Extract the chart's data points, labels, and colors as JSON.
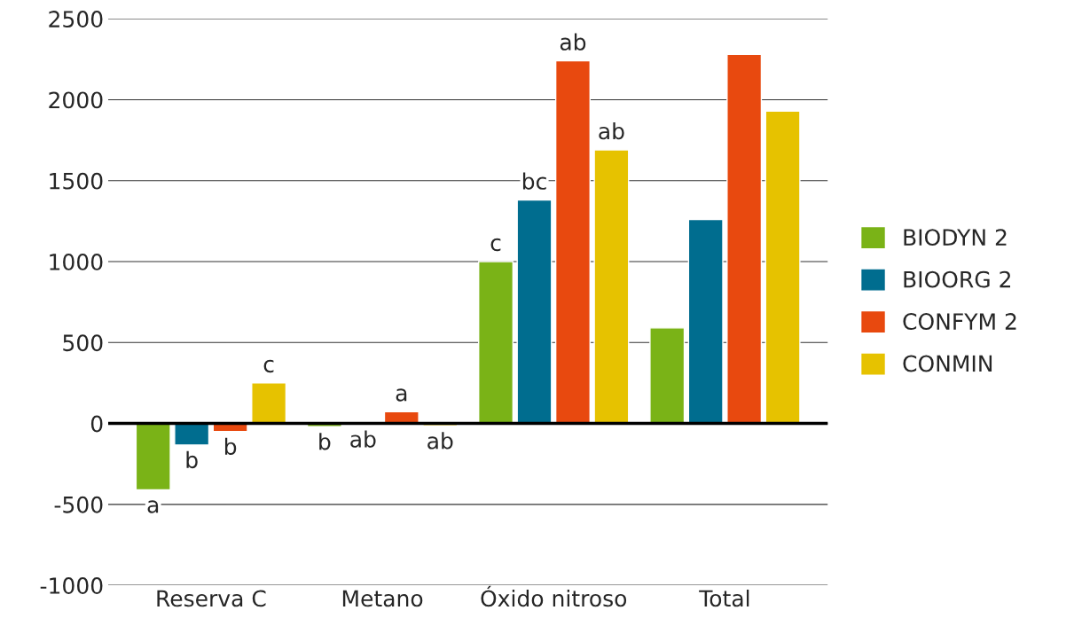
{
  "chart_data": {
    "type": "bar",
    "categories": [
      "Reserva C",
      "Metano",
      "Óxido nitroso",
      "Total"
    ],
    "series": [
      {
        "name": "BIODYN 2",
        "color": "#7ab317",
        "values": [
          -410,
          -20,
          1000,
          590
        ],
        "value_labels": [
          "a",
          "b",
          "c",
          null
        ]
      },
      {
        "name": "BIOORG 2",
        "color": "#006d8f",
        "values": [
          -133,
          -5,
          1380,
          1260
        ],
        "value_labels": [
          "b",
          "ab",
          "bc",
          null
        ]
      },
      {
        "name": "CONFYM 2",
        "color": "#e8490f",
        "values": [
          -50,
          72,
          2240,
          2280
        ],
        "value_labels": [
          "b",
          "a",
          "ab",
          null
        ]
      },
      {
        "name": "CONMIN",
        "color": "#e6c200",
        "values": [
          250,
          -15,
          1690,
          1930
        ],
        "value_labels": [
          "c",
          "ab",
          "ab",
          null
        ]
      }
    ],
    "ylim": [
      -1000,
      2500
    ],
    "yticks": [
      -1000,
      -500,
      0,
      500,
      1000,
      1500,
      2000,
      2500
    ],
    "ref_lines": [
      {
        "axis": "y",
        "value": 0,
        "color": "#000000"
      }
    ],
    "grid": "y",
    "legend": "right"
  }
}
